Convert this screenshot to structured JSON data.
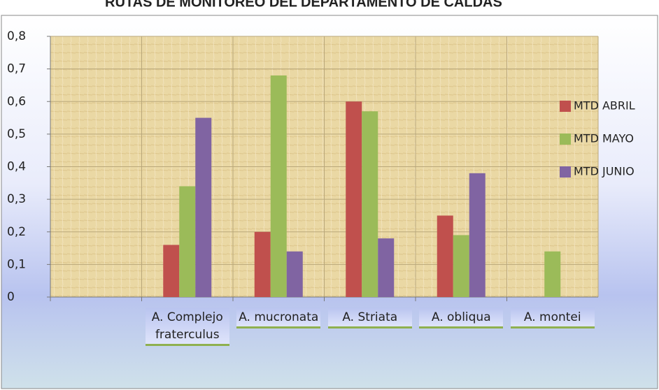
{
  "chart_data": {
    "type": "bar",
    "title": "RUTAS DE MONITOREO DEL DEPARTAMENTO DE CALDAS",
    "categories": [
      null,
      "A. Complejo fraterculus",
      "A. mucronata",
      "A. Striata",
      "A. obliqua",
      "A. montei"
    ],
    "series": [
      {
        "name": "MTD ABRIL",
        "color": "#c0504d",
        "values": [
          null,
          0.16,
          0.2,
          0.6,
          0.25,
          null
        ]
      },
      {
        "name": "MTD MAYO",
        "color": "#9bbb59",
        "values": [
          null,
          0.34,
          0.68,
          0.57,
          0.19,
          0.14
        ]
      },
      {
        "name": "MTD JUNIO",
        "color": "#8064a2",
        "values": [
          null,
          0.55,
          0.14,
          0.18,
          0.38,
          null
        ]
      }
    ],
    "ylim": [
      0,
      0.8
    ],
    "yticks": [
      {
        "value": 0,
        "label": "0"
      },
      {
        "value": 0.1,
        "label": "0,1"
      },
      {
        "value": 0.2,
        "label": "0,2"
      },
      {
        "value": 0.3,
        "label": "0,3"
      },
      {
        "value": 0.4,
        "label": "0,4"
      },
      {
        "value": 0.5,
        "label": "0,5"
      },
      {
        "value": 0.6,
        "label": "0,6"
      },
      {
        "value": 0.7,
        "label": "0,7"
      },
      {
        "value": 0.8,
        "label": "0,8"
      }
    ],
    "grid": true,
    "legend": "right"
  }
}
